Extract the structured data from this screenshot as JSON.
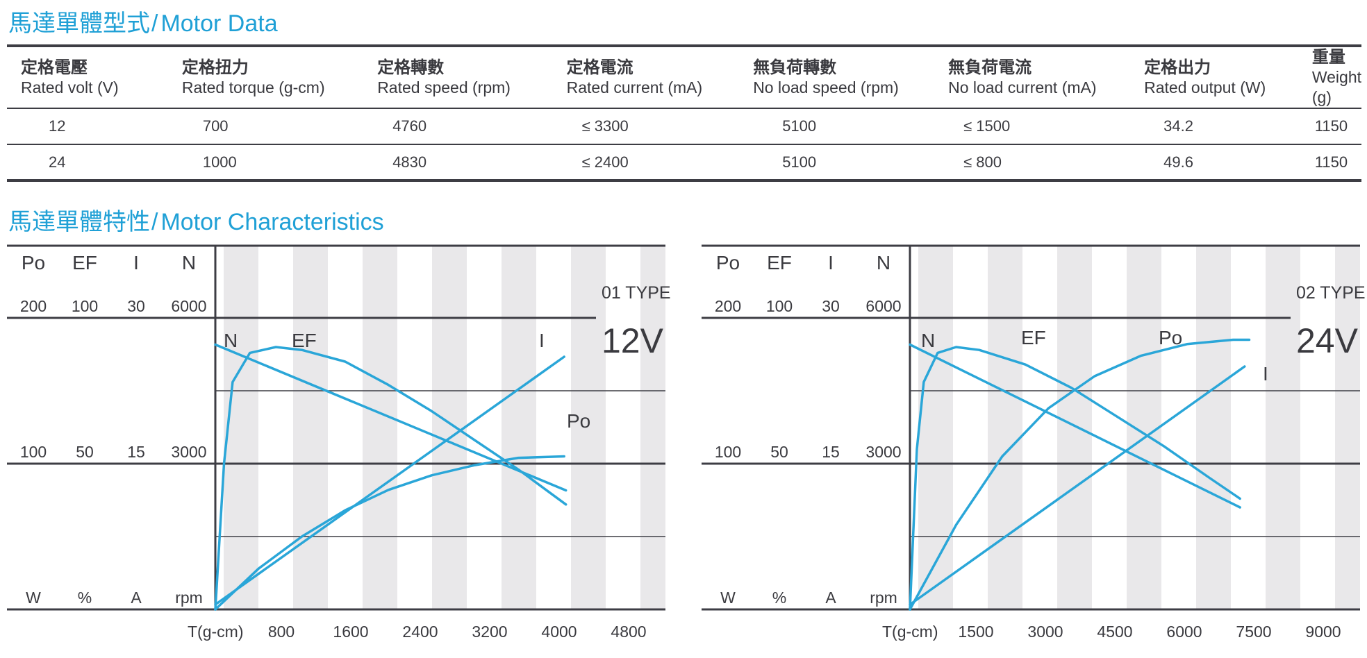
{
  "motor_data": {
    "title_zh": "馬達單體型式",
    "title_sep": "/",
    "title_en": "Motor Data",
    "columns": [
      {
        "zh": "定格電壓",
        "en": "Rated volt (V)"
      },
      {
        "zh": "定格扭力",
        "en": "Rated torque (g-cm)"
      },
      {
        "zh": "定格轉數",
        "en": "Rated speed (rpm)"
      },
      {
        "zh": "定格電流",
        "en": "Rated current (mA)"
      },
      {
        "zh": "無負荷轉數",
        "en": "No load speed (rpm)"
      },
      {
        "zh": "無負荷電流",
        "en": "No load current (mA)"
      },
      {
        "zh": "定格出力",
        "en": "Rated output (W)"
      },
      {
        "zh": "重量",
        "en": "Weight (g)"
      }
    ],
    "rows": [
      [
        "12",
        "700",
        "4760",
        "≤ 3300",
        "5100",
        "≤ 1500",
        "34.2",
        "1150"
      ],
      [
        "24",
        "1000",
        "4830",
        "≤ 2400",
        "5100",
        "≤ 800",
        "49.6",
        "1150"
      ]
    ]
  },
  "characteristics": {
    "title_zh": "馬達單體特性",
    "title_sep": "/",
    "title_en": "Motor Characteristics"
  },
  "colors": {
    "accent": "#1fa0d6",
    "curve": "#2aa6d8",
    "band": "#e9e8ea",
    "rule": "#3d3d44",
    "text": "#3a3a3f"
  },
  "chart_data": [
    {
      "type": "line",
      "type_label": "01 TYPE",
      "voltage_label": "12V",
      "y_axes": [
        {
          "name": "Po",
          "unit": "W",
          "top": "200",
          "mid": "100"
        },
        {
          "name": "EF",
          "unit": "%",
          "top": "100",
          "mid": "50"
        },
        {
          "name": "I",
          "unit": "A",
          "top": "30",
          "mid": "15"
        },
        {
          "name": "N",
          "unit": "rpm",
          "top": "6000",
          "mid": "3000"
        }
      ],
      "xlabel": "T(g-cm)",
      "x_ticks": [
        "800",
        "1600",
        "2400",
        "3200",
        "4000",
        "4800"
      ],
      "xlim": [
        0,
        5200
      ],
      "series_label_text": [
        "N",
        "EF",
        "I",
        "Po"
      ],
      "series": [
        {
          "name": "N",
          "axis": "N",
          "x": [
            0,
            4050
          ],
          "values": [
            5450,
            2450
          ]
        },
        {
          "name": "EF",
          "axis": "EF",
          "x": [
            0,
            100,
            200,
            400,
            700,
            1000,
            1500,
            2000,
            2500,
            3000,
            3500,
            4050
          ],
          "values": [
            0,
            50,
            78,
            88,
            90,
            89,
            85,
            77,
            68,
            58,
            48,
            36
          ]
        },
        {
          "name": "I",
          "axis": "I",
          "x": [
            0,
            4030
          ],
          "values": [
            0.5,
            26
          ]
        },
        {
          "name": "Po",
          "axis": "Po",
          "x": [
            0,
            500,
            1000,
            1500,
            2000,
            2500,
            3000,
            3500,
            4030
          ],
          "values": [
            0,
            28,
            50,
            68,
            82,
            92,
            99,
            104,
            105
          ]
        }
      ]
    },
    {
      "type": "line",
      "type_label": "02 TYPE",
      "voltage_label": "24V",
      "y_axes": [
        {
          "name": "Po",
          "unit": "W",
          "top": "200",
          "mid": "100"
        },
        {
          "name": "EF",
          "unit": "%",
          "top": "100",
          "mid": "50"
        },
        {
          "name": "I",
          "unit": "A",
          "top": "30",
          "mid": "15"
        },
        {
          "name": "N",
          "unit": "rpm",
          "top": "6000",
          "mid": "3000"
        }
      ],
      "xlabel": "T(g-cm)",
      "x_ticks": [
        "1500",
        "3000",
        "4500",
        "6000",
        "7500",
        "9000"
      ],
      "xlim": [
        0,
        9750
      ],
      "series_label_text": [
        "N",
        "EF",
        "Po",
        "I"
      ],
      "series": [
        {
          "name": "N",
          "axis": "N",
          "x": [
            0,
            7150
          ],
          "values": [
            5450,
            2100
          ]
        },
        {
          "name": "EF",
          "axis": "EF",
          "x": [
            0,
            150,
            300,
            600,
            1000,
            1500,
            2500,
            3500,
            4500,
            5500,
            6500,
            7150
          ],
          "values": [
            0,
            55,
            78,
            88,
            90,
            89,
            84,
            76,
            66,
            56,
            45,
            38
          ]
        },
        {
          "name": "Po",
          "axis": "Po",
          "x": [
            0,
            1000,
            2000,
            3000,
            4000,
            5000,
            6000,
            7000,
            7350
          ],
          "values": [
            0,
            58,
            105,
            138,
            160,
            174,
            182,
            185,
            185
          ]
        },
        {
          "name": "I",
          "axis": "I",
          "x": [
            0,
            7250
          ],
          "values": [
            0.5,
            25
          ]
        }
      ]
    }
  ]
}
